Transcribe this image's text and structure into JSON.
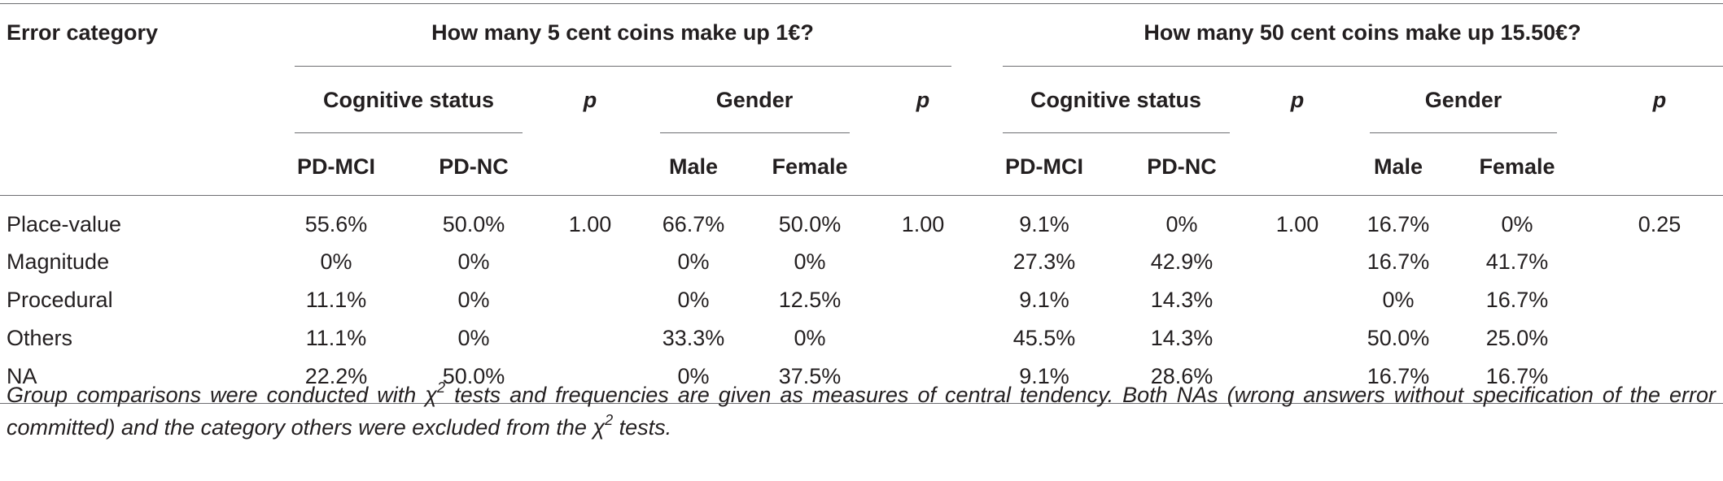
{
  "header": {
    "error_category": "Error category",
    "q1": "How many 5 cent coins make up 1€?",
    "q2": "How many 50 cent coins make up 15.50€?",
    "cognitive_status": "Cognitive status",
    "gender": "Gender",
    "p": "p",
    "pd_mci": "PD-MCI",
    "pd_nc": "PD-NC",
    "male": "Male",
    "female": "Female"
  },
  "rows": [
    {
      "label": "Place-value",
      "cells": [
        "55.6%",
        "50.0%",
        "1.00",
        "66.7%",
        "50.0%",
        "1.00",
        "9.1%",
        "0%",
        "1.00",
        "16.7%",
        "0%",
        "0.25"
      ]
    },
    {
      "label": "Magnitude",
      "cells": [
        "0%",
        "0%",
        "",
        "0%",
        "0%",
        "",
        "27.3%",
        "42.9%",
        "",
        "16.7%",
        "41.7%",
        ""
      ]
    },
    {
      "label": "Procedural",
      "cells": [
        "11.1%",
        "0%",
        "",
        "0%",
        "12.5%",
        "",
        "9.1%",
        "14.3%",
        "",
        "0%",
        "16.7%",
        ""
      ]
    },
    {
      "label": "Others",
      "cells": [
        "11.1%",
        "0%",
        "",
        "33.3%",
        "0%",
        "",
        "45.5%",
        "14.3%",
        "",
        "50.0%",
        "25.0%",
        ""
      ]
    },
    {
      "label": "NA",
      "cells": [
        "22.2%",
        "50.0%",
        "",
        "0%",
        "37.5%",
        "",
        "9.1%",
        "28.6%",
        "",
        "16.7%",
        "16.7%",
        ""
      ]
    }
  ],
  "footnote": {
    "part1": "Group comparisons were conducted with χ",
    "sup1": "2",
    "part2": " tests and frequencies are given as measures of central tendency. Both NAs (wrong answers without specification of the error committed) and the category others were excluded from the χ",
    "sup2": "2",
    "part3": " tests."
  }
}
